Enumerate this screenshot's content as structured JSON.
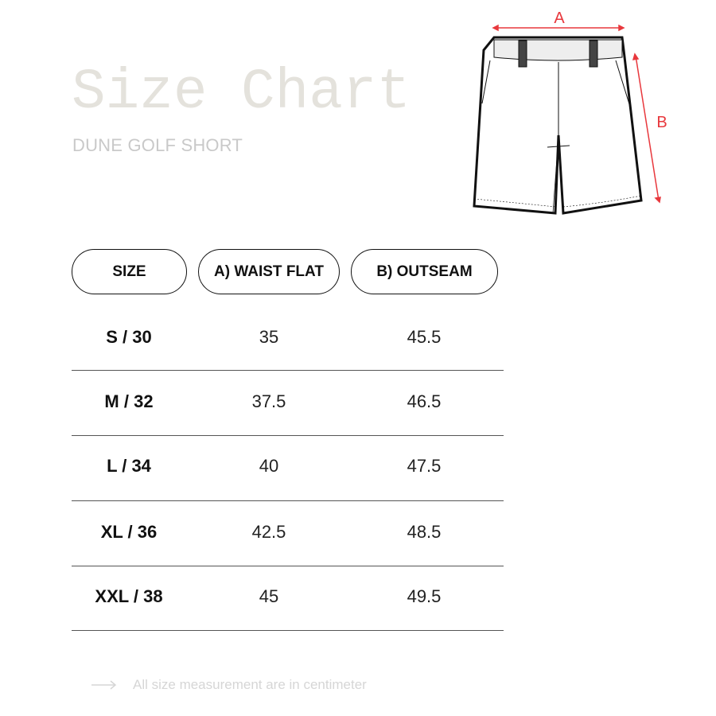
{
  "header": {
    "title": "Size Chart",
    "subtitle": "DUNE GOLF SHORT"
  },
  "diagram": {
    "label_a": "A",
    "label_b": "B",
    "accent_color": "#e8383d"
  },
  "table": {
    "columns": [
      "SIZE",
      "A) WAIST FLAT",
      "B) OUTSEAM"
    ],
    "rows": [
      {
        "size": "S / 30",
        "waist": "35",
        "outseam": "45.5"
      },
      {
        "size": "M / 32",
        "waist": "37.5",
        "outseam": "46.5"
      },
      {
        "size": "L / 34",
        "waist": "40",
        "outseam": "47.5"
      },
      {
        "size": "XL / 36",
        "waist": "42.5",
        "outseam": "48.5"
      },
      {
        "size": "XXL / 38",
        "waist": "45",
        "outseam": "49.5"
      }
    ]
  },
  "footer": {
    "note": "All size measurement are in centimeter",
    "icon": "arrow-right-icon"
  }
}
